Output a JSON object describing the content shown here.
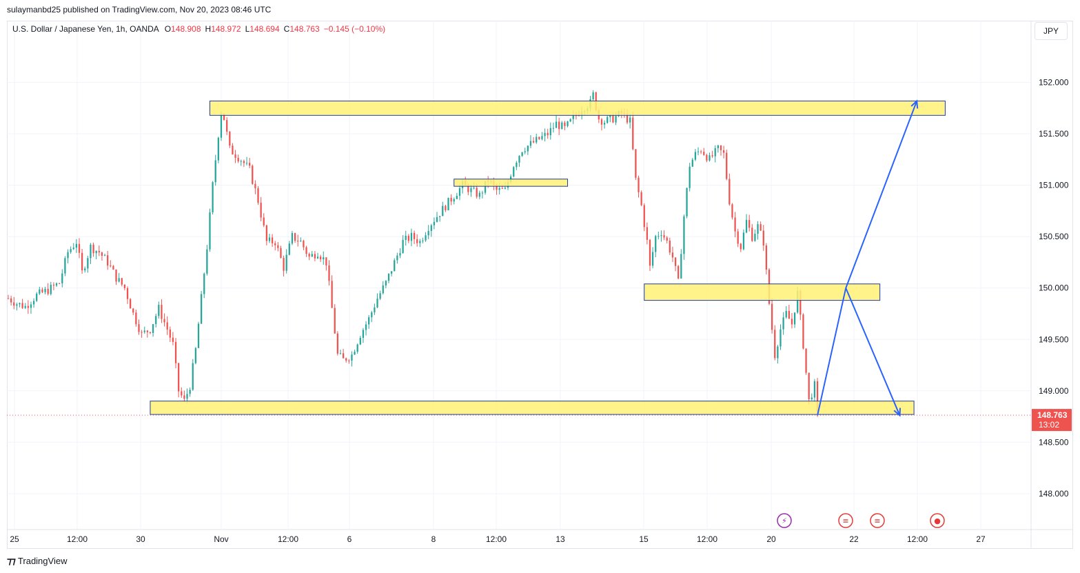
{
  "header": {
    "published_by": "sulaymanbd25 published on TradingView.com, Nov 20, 2023 08:46 UTC"
  },
  "legend": {
    "symbol": "U.S. Dollar / Japanese Yen, 1h, OANDA",
    "open_label": "O",
    "open": "148.908",
    "high_label": "H",
    "high": "148.972",
    "low_label": "L",
    "low": "148.694",
    "close_label": "C",
    "close": "148.763",
    "change": "−0.145 (−0.10%)"
  },
  "currency_button": "JPY",
  "price_label": {
    "price": "148.763",
    "countdown": "13:02"
  },
  "footer": {
    "brand": "TradingView"
  },
  "colors": {
    "up": "#26a69a",
    "down": "#ef5350",
    "zone_fill": "#fff176",
    "zone_border": "#1e3aa0",
    "projection": "#2962ff",
    "grid": "#f0f3fa"
  },
  "chart_data": {
    "type": "candlestick",
    "y_tick_labels": [
      "152.000",
      "151.500",
      "151.000",
      "150.500",
      "150.000",
      "149.500",
      "149.000",
      "148.500",
      "148.000"
    ],
    "y_ticks": [
      152.0,
      151.5,
      151.0,
      150.5,
      150.0,
      149.5,
      149.0,
      148.5,
      148.0
    ],
    "x_tick_labels": [
      "25",
      "12:00",
      "30",
      "Nov",
      "12:00",
      "6",
      "8",
      "12:00",
      "13",
      "15",
      "12:00",
      "20",
      "22",
      "12:00",
      "27"
    ],
    "ylim": [
      147.65,
      152.4
    ],
    "last_price": 148.763,
    "price_path": [
      [
        0,
        149.9
      ],
      [
        3,
        149.85
      ],
      [
        6,
        149.82
      ],
      [
        10,
        149.93
      ],
      [
        14,
        149.98
      ],
      [
        18,
        150.05
      ],
      [
        21,
        150.35
      ],
      [
        24,
        150.45
      ],
      [
        26,
        150.15
      ],
      [
        29,
        150.4
      ],
      [
        32,
        150.35
      ],
      [
        35,
        150.25
      ],
      [
        38,
        150.1
      ],
      [
        41,
        150.0
      ],
      [
        44,
        149.75
      ],
      [
        47,
        149.55
      ],
      [
        50,
        149.6
      ],
      [
        53,
        149.8
      ],
      [
        56,
        149.6
      ],
      [
        58,
        149.45
      ],
      [
        60,
        149.0
      ],
      [
        62,
        148.9
      ],
      [
        64,
        149.05
      ],
      [
        66,
        149.4
      ],
      [
        68,
        149.9
      ],
      [
        70,
        150.4
      ],
      [
        72,
        151.0
      ],
      [
        74,
        151.5
      ],
      [
        75,
        151.72
      ],
      [
        76,
        151.65
      ],
      [
        78,
        151.35
      ],
      [
        80,
        151.3
      ],
      [
        82,
        151.25
      ],
      [
        85,
        151.15
      ],
      [
        88,
        150.85
      ],
      [
        91,
        150.45
      ],
      [
        94,
        150.45
      ],
      [
        97,
        150.2
      ],
      [
        100,
        150.5
      ],
      [
        103,
        150.45
      ],
      [
        106,
        150.3
      ],
      [
        109,
        150.35
      ],
      [
        112,
        150.25
      ],
      [
        114,
        149.8
      ],
      [
        116,
        149.35
      ],
      [
        118,
        149.3
      ],
      [
        121,
        149.35
      ],
      [
        124,
        149.55
      ],
      [
        127,
        149.7
      ],
      [
        130,
        149.9
      ],
      [
        133,
        150.05
      ],
      [
        136,
        150.25
      ],
      [
        139,
        150.45
      ],
      [
        142,
        150.5
      ],
      [
        145,
        150.45
      ],
      [
        148,
        150.6
      ],
      [
        151,
        150.7
      ],
      [
        154,
        150.8
      ],
      [
        157,
        150.9
      ],
      [
        160,
        151.0
      ],
      [
        163,
        150.95
      ],
      [
        166,
        150.9
      ],
      [
        169,
        151.05
      ],
      [
        172,
        150.95
      ],
      [
        175,
        150.95
      ],
      [
        178,
        151.2
      ],
      [
        181,
        151.35
      ],
      [
        184,
        151.4
      ],
      [
        187,
        151.45
      ],
      [
        190,
        151.5
      ],
      [
        193,
        151.6
      ],
      [
        196,
        151.55
      ],
      [
        199,
        151.65
      ],
      [
        202,
        151.75
      ],
      [
        205,
        151.8
      ],
      [
        206,
        151.88
      ],
      [
        208,
        151.65
      ],
      [
        210,
        151.62
      ],
      [
        213,
        151.65
      ],
      [
        216,
        151.7
      ],
      [
        219,
        151.62
      ],
      [
        221,
        151.05
      ],
      [
        223,
        150.8
      ],
      [
        225,
        150.45
      ],
      [
        226,
        150.2
      ],
      [
        228,
        150.5
      ],
      [
        230,
        150.55
      ],
      [
        232,
        150.45
      ],
      [
        234,
        150.3
      ],
      [
        236,
        150.05
      ],
      [
        238,
        150.7
      ],
      [
        240,
        151.2
      ],
      [
        242,
        151.3
      ],
      [
        244,
        151.35
      ],
      [
        247,
        151.25
      ],
      [
        250,
        151.35
      ],
      [
        252,
        151.3
      ],
      [
        254,
        150.85
      ],
      [
        256,
        150.55
      ],
      [
        258,
        150.4
      ],
      [
        260,
        150.65
      ],
      [
        262,
        150.5
      ],
      [
        264,
        150.6
      ],
      [
        266,
        150.45
      ],
      [
        268,
        149.85
      ],
      [
        270,
        149.35
      ],
      [
        272,
        149.6
      ],
      [
        274,
        149.75
      ],
      [
        276,
        149.65
      ],
      [
        278,
        149.95
      ],
      [
        280,
        149.45
      ],
      [
        282,
        148.9
      ],
      [
        284,
        149.05
      ],
      [
        285,
        148.76
      ]
    ],
    "zones": [
      {
        "x0": 71,
        "x1": 330,
        "y0": 151.68,
        "y1": 151.82
      },
      {
        "x0": 157,
        "x1": 197,
        "y0": 150.99,
        "y1": 151.06
      },
      {
        "x0": 224,
        "x1": 307,
        "y0": 149.88,
        "y1": 150.04
      },
      {
        "x0": 50,
        "x1": 319,
        "y0": 148.77,
        "y1": 148.9
      }
    ],
    "projection": [
      [
        285,
        148.76
      ],
      [
        295,
        150.0
      ],
      [
        320,
        151.82
      ]
    ],
    "projection_alt": [
      [
        295,
        150.0
      ],
      [
        314,
        148.76
      ]
    ],
    "grid": true
  }
}
